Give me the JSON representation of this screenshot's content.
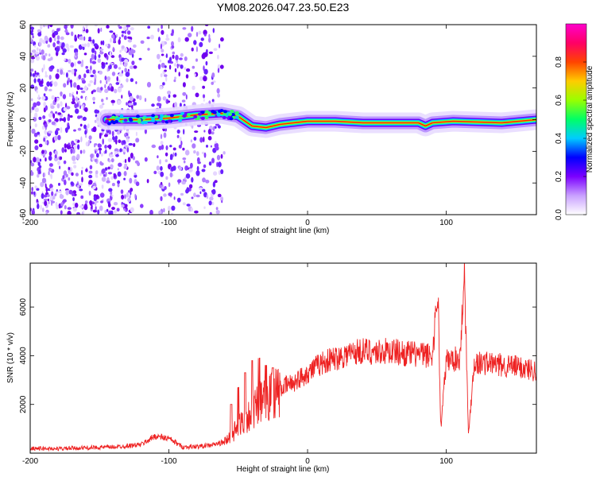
{
  "title": "YM08.2026.047.23.50.E23",
  "chart_data": [
    {
      "type": "heatmap",
      "xlabel": "Height of straight line (km)",
      "ylabel": "Frequency (Hz)",
      "xlim": [
        -200,
        165
      ],
      "ylim": [
        -60,
        60
      ],
      "x_ticks": [
        -200,
        -100,
        0,
        100
      ],
      "y_ticks": [
        -60,
        -40,
        -20,
        0,
        20,
        40,
        60
      ],
      "colorbar": {
        "label": "Normalized spectral amplitude",
        "range": [
          0,
          1
        ],
        "ticks": [
          0.0,
          0.2,
          0.4,
          0.6,
          0.8
        ],
        "colormap": [
          "#ffffff",
          "#c9a0ff",
          "#7b00ff",
          "#0000ff",
          "#00ccff",
          "#00ff66",
          "#99ff00",
          "#ffcc00",
          "#ff4400",
          "#ff0066",
          "#ff00cc"
        ]
      },
      "ridge": [
        {
          "x": -145,
          "y": 0
        },
        {
          "x": -120,
          "y": 0
        },
        {
          "x": -100,
          "y": 1
        },
        {
          "x": -80,
          "y": 3
        },
        {
          "x": -62,
          "y": 4
        },
        {
          "x": -50,
          "y": 2
        },
        {
          "x": -40,
          "y": -4
        },
        {
          "x": -30,
          "y": -5
        },
        {
          "x": -20,
          "y": -3
        },
        {
          "x": -10,
          "y": -2
        },
        {
          "x": 0,
          "y": -1
        },
        {
          "x": 20,
          "y": -1
        },
        {
          "x": 40,
          "y": -2
        },
        {
          "x": 60,
          "y": -2
        },
        {
          "x": 80,
          "y": -2
        },
        {
          "x": 85,
          "y": -4
        },
        {
          "x": 90,
          "y": -2
        },
        {
          "x": 105,
          "y": -1
        },
        {
          "x": 140,
          "y": -2
        },
        {
          "x": 165,
          "y": 0
        }
      ],
      "noise_region_x": [
        -200,
        -60
      ]
    },
    {
      "type": "line",
      "xlabel": "Height of straight line (km)",
      "ylabel": "SNR (10 * v/v)",
      "xlim": [
        -200,
        165
      ],
      "ylim": [
        0,
        7800
      ],
      "x_ticks": [
        -200,
        -100,
        0,
        100
      ],
      "y_ticks": [
        2000,
        4000,
        6000
      ],
      "color": "#ee2222",
      "x": [
        -200,
        -180,
        -160,
        -140,
        -130,
        -120,
        -110,
        -100,
        -90,
        -80,
        -70,
        -60,
        -55,
        -50,
        -45,
        -40,
        -35,
        -30,
        -25,
        -20,
        -15,
        -10,
        -5,
        0,
        5,
        10,
        15,
        20,
        25,
        30,
        35,
        40,
        50,
        60,
        70,
        80,
        90,
        94,
        96,
        100,
        110,
        113,
        116,
        120,
        130,
        140,
        150,
        165
      ],
      "y": [
        200,
        180,
        220,
        250,
        300,
        350,
        700,
        600,
        250,
        270,
        320,
        450,
        700,
        1100,
        1400,
        1700,
        2000,
        2200,
        2400,
        2600,
        2800,
        2900,
        3100,
        3300,
        3500,
        3700,
        3800,
        3900,
        4000,
        4100,
        4150,
        4200,
        4150,
        4200,
        4100,
        4050,
        4000,
        6800,
        1000,
        3800,
        3900,
        7700,
        700,
        3700,
        3700,
        3600,
        3550,
        3400
      ],
      "spikes": [
        {
          "x": -55,
          "y": 2000
        },
        {
          "x": -50,
          "y": 2700
        },
        {
          "x": -45,
          "y": 3300
        },
        {
          "x": -40,
          "y": 3800
        },
        {
          "x": -35,
          "y": 3900
        },
        {
          "x": -30,
          "y": 3600
        },
        {
          "x": -25,
          "y": 3500
        }
      ]
    }
  ]
}
